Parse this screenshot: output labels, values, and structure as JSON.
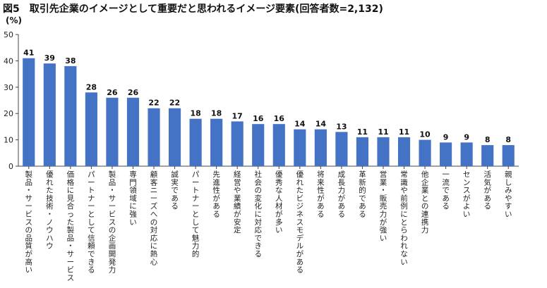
{
  "chart_data": {
    "type": "bar",
    "title": "図5　取引先企業のイメージとして重要だと思われるイメージ要素(回答者数=2,132)",
    "unit_label": "(%)",
    "ylim": [
      0,
      50
    ],
    "yticks": [
      0,
      10,
      20,
      30,
      40,
      50
    ],
    "bar_color": "#4472C4",
    "grid": false,
    "categories": [
      "製品・サービスの品質が高い",
      "優れた技術・ノウハウ",
      "価格に見合った製品・サービス",
      "パートナーとして信頼できる",
      "製品・サービスの企画開発力",
      "専門領域に強い",
      "顧客ニーズへの対応に熱心",
      "誠実である",
      "パートナーとして魅力的",
      "先進性がある",
      "経営や業績が安定",
      "社会の変化に対応できる",
      "優秀な人材が多い",
      "優れたビジネスモデルがある",
      "将来性がある",
      "成長力がある",
      "革新的である",
      "営業・販売力が強い",
      "常識や前例にとらわれない",
      "他企業との連携力",
      "一流である",
      "センスがよい",
      "活気がある",
      "親しみやすい"
    ],
    "values": [
      41,
      39,
      38,
      28,
      26,
      26,
      22,
      22,
      18,
      18,
      17,
      16,
      16,
      14,
      14,
      13,
      11,
      11,
      11,
      10,
      9,
      9,
      8,
      8
    ]
  }
}
